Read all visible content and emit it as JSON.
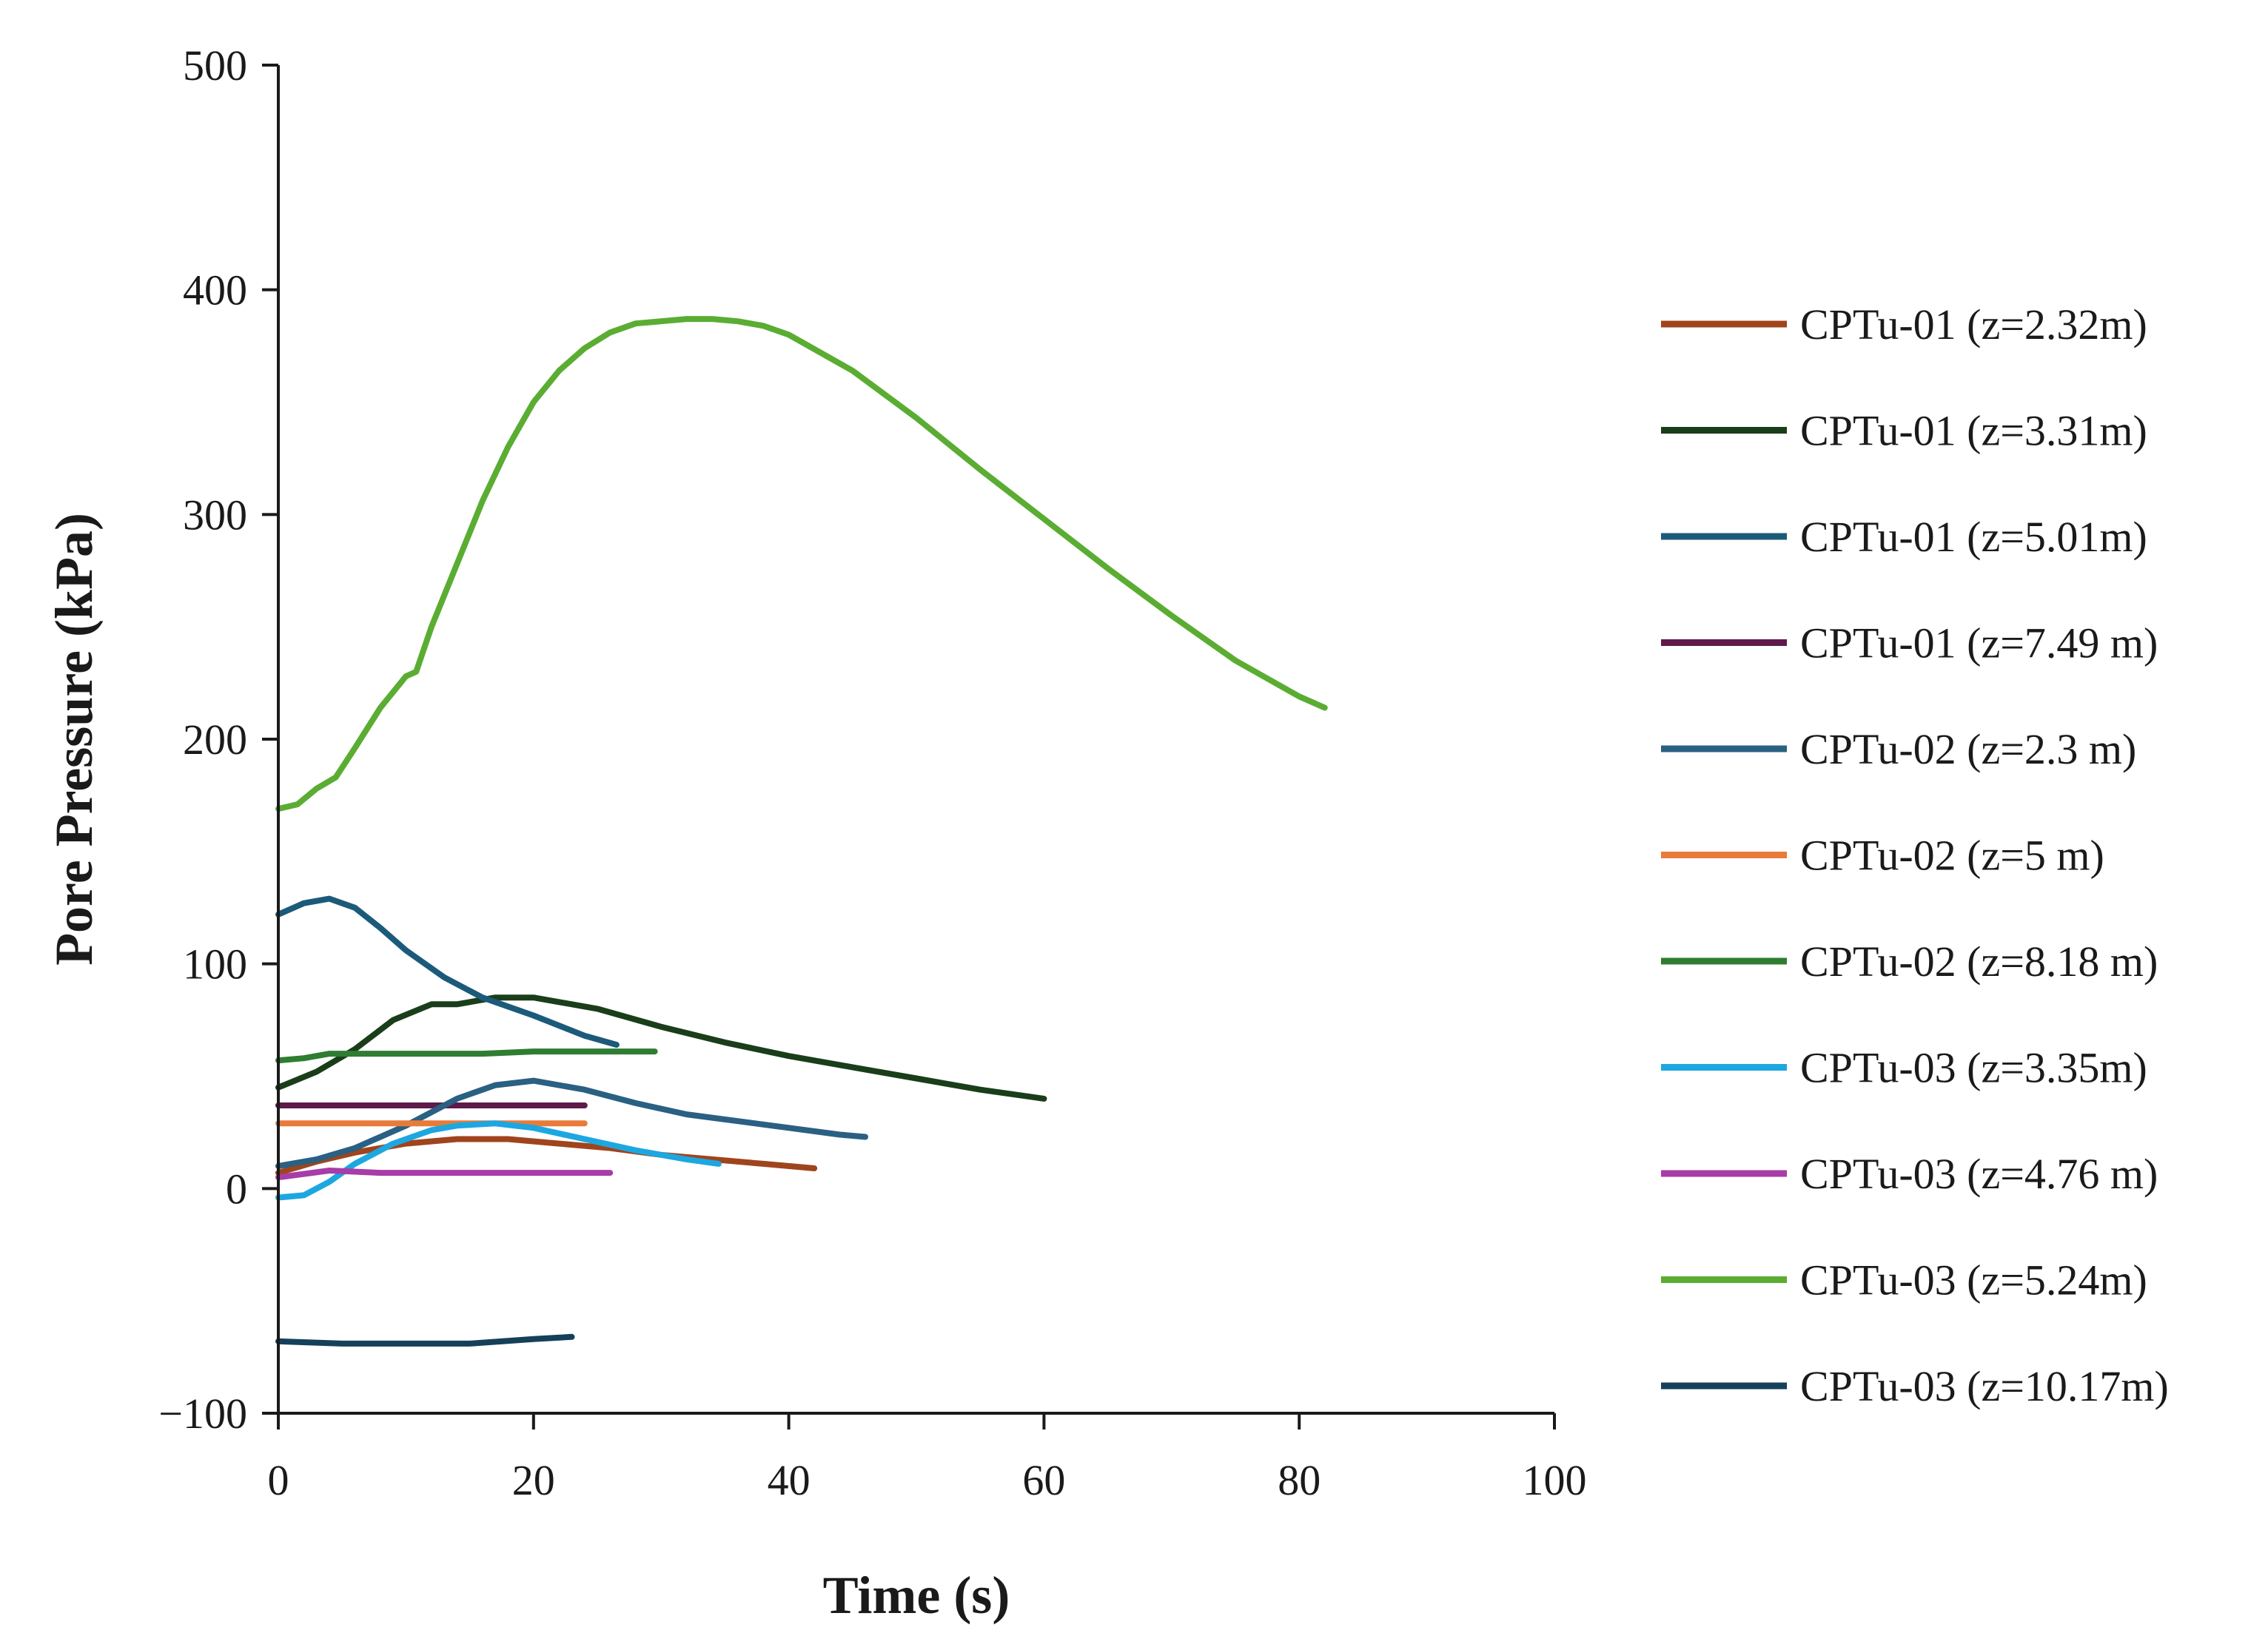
{
  "chart_data": {
    "type": "line",
    "title": "",
    "xlabel": "Time (s)",
    "ylabel": "Pore Pressure (kPa)",
    "xlim": [
      0,
      100
    ],
    "ylim": [
      -100,
      500
    ],
    "xticks": [
      0,
      20,
      40,
      60,
      80,
      100
    ],
    "xtick_labels": [
      "0",
      "20",
      "40",
      "60",
      "80",
      "100"
    ],
    "yticks": [
      -100,
      0,
      100,
      200,
      300,
      400,
      500
    ],
    "ytick_labels": [
      "−100",
      "0",
      "100",
      "200",
      "300",
      "400",
      "500"
    ],
    "grid": false,
    "legend_position": "right",
    "series": [
      {
        "name": "CPTu-01 (z=2.32m)",
        "color": "#a0441c",
        "x": [
          0,
          3,
          6,
          10,
          14,
          18,
          22,
          26,
          30,
          34,
          38,
          42
        ],
        "y": [
          7,
          12,
          16,
          20,
          22,
          22,
          20,
          18,
          15,
          13,
          11,
          9
        ]
      },
      {
        "name": "CPTu-01 (z=3.31m)",
        "color": "#1a3d1a",
        "x": [
          0,
          3,
          6,
          9,
          12,
          14,
          17,
          20,
          25,
          30,
          35,
          40,
          45,
          50,
          55,
          60
        ],
        "y": [
          45,
          52,
          62,
          75,
          82,
          82,
          85,
          85,
          80,
          72,
          65,
          59,
          54,
          49,
          44,
          40
        ]
      },
      {
        "name": "CPTu-01 (z=5.01m)",
        "color": "#1c5a7a",
        "x": [
          0,
          2,
          4,
          6,
          8,
          10,
          13,
          16,
          20,
          24,
          26.5
        ],
        "y": [
          122,
          127,
          129,
          125,
          116,
          106,
          94,
          85,
          77,
          68,
          64
        ]
      },
      {
        "name": "CPTu-01 (z=7.49 m)",
        "color": "#5e1a4a",
        "x": [
          0,
          5,
          10,
          15,
          20,
          24
        ],
        "y": [
          37,
          37,
          37,
          37,
          37,
          37
        ]
      },
      {
        "name": "CPTu-02 (z=2.3 m)",
        "color": "#2a6082",
        "x": [
          0,
          3,
          6,
          10,
          14,
          17,
          20,
          24,
          28,
          32,
          36,
          40,
          44,
          46
        ],
        "y": [
          10,
          13,
          18,
          28,
          40,
          46,
          48,
          44,
          38,
          33,
          30,
          27,
          24,
          23
        ]
      },
      {
        "name": "CPTu-02 (z=5 m)",
        "color": "#e97b3a",
        "x": [
          0,
          5,
          10,
          15,
          20,
          24
        ],
        "y": [
          29,
          29,
          29,
          29,
          29,
          29
        ]
      },
      {
        "name": "CPTu-02 (z=8.18 m)",
        "color": "#2e7d32",
        "x": [
          0,
          2,
          4,
          8,
          12,
          16,
          20,
          24,
          29.5
        ],
        "y": [
          57,
          58,
          60,
          60,
          60,
          60,
          61,
          61,
          61
        ]
      },
      {
        "name": "CPTu-03 (z=3.35m)",
        "color": "#1da7e0",
        "x": [
          0,
          2,
          4,
          6,
          9,
          12,
          14,
          17,
          20,
          24,
          28,
          32,
          34.5
        ],
        "y": [
          -4,
          -3,
          3,
          11,
          20,
          26,
          28,
          29,
          27,
          22,
          17,
          13,
          11
        ]
      },
      {
        "name": "CPTu-03 (z=4.76 m)",
        "color": "#a83ca8",
        "x": [
          0,
          4,
          8,
          12,
          16,
          20,
          26
        ],
        "y": [
          5,
          8,
          7,
          7,
          7,
          7,
          7
        ]
      },
      {
        "name": "CPTu-03 (z=5.24m)",
        "color": "#5aad32",
        "x": [
          0,
          1.5,
          3,
          4.5,
          6,
          8,
          10,
          10.8,
          12,
          14,
          16,
          18,
          20,
          22,
          24,
          26,
          28,
          30,
          32,
          34,
          36,
          38,
          40,
          45,
          50,
          55,
          60,
          65,
          70,
          75,
          80,
          82
        ],
        "y": [
          169,
          171,
          178,
          183,
          196,
          214,
          228,
          230,
          250,
          278,
          306,
          330,
          350,
          364,
          374,
          381,
          385,
          386,
          387,
          387,
          386,
          384,
          380,
          364,
          343,
          320,
          298,
          276,
          255,
          235,
          219,
          214
        ]
      },
      {
        "name": "CPTu-03 (z=10.17m)",
        "color": "#15405a",
        "x": [
          0,
          5,
          10,
          15,
          20,
          23
        ],
        "y": [
          -68,
          -69,
          -69,
          -69,
          -67,
          -66
        ]
      }
    ]
  }
}
